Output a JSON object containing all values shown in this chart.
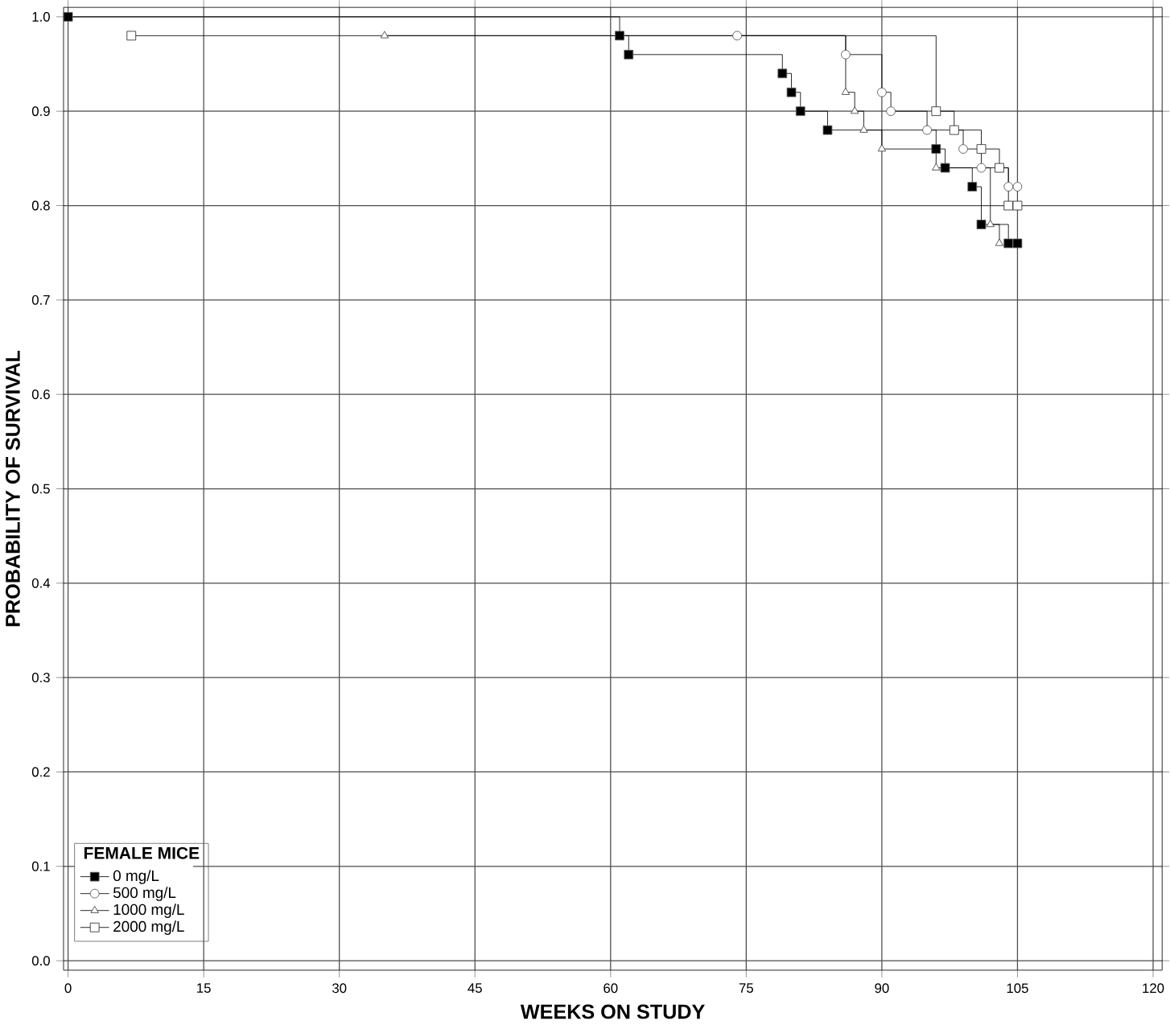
{
  "chart_data": {
    "type": "step",
    "xlabel": "WEEKS ON STUDY",
    "ylabel": "PROBABILITY OF SURVIVAL",
    "legend_title": "FEMALE MICE",
    "legend": "bottom left",
    "grid": true,
    "xlim": [
      -0.5,
      121
    ],
    "ylim": [
      -0.01,
      1.01
    ],
    "xticks": [
      0,
      15,
      30,
      45,
      60,
      75,
      90,
      105,
      120
    ],
    "yticks": [
      {
        "value": 0,
        "label": "0.0"
      },
      {
        "value": 0.1,
        "label": "0.1"
      },
      {
        "value": 0.2,
        "label": "0.2"
      },
      {
        "value": 0.3,
        "label": "0.3"
      },
      {
        "value": 0.4,
        "label": "0.4"
      },
      {
        "value": 0.5,
        "label": "0.5"
      },
      {
        "value": 0.6,
        "label": "0.6"
      },
      {
        "value": 0.7,
        "label": "0.7"
      },
      {
        "value": 0.8,
        "label": "0.8"
      },
      {
        "value": 0.9,
        "label": "0.9"
      },
      {
        "value": 1.0,
        "label": "1.0"
      }
    ],
    "series": [
      {
        "name": "0 mg/L",
        "color": "#000000",
        "marker": "square",
        "x": [
          0,
          61,
          62,
          79,
          80,
          81,
          84,
          96,
          97,
          100,
          101,
          104,
          105
        ],
        "values": [
          1.0,
          0.98,
          0.96,
          0.94,
          0.92,
          0.9,
          0.88,
          0.86,
          0.84,
          0.82,
          0.78,
          0.76,
          0.76
        ]
      },
      {
        "name": "500 mg/L",
        "color": "#ffffff",
        "marker": "circle",
        "x": [
          74,
          86,
          90,
          91,
          95,
          99,
          101,
          104,
          105
        ],
        "values": [
          0.98,
          0.96,
          0.92,
          0.9,
          0.88,
          0.86,
          0.84,
          0.82,
          0.82
        ]
      },
      {
        "name": "1000 mg/L",
        "color": "#ffffff",
        "marker": "triangle",
        "x": [
          35,
          86,
          87,
          88,
          90,
          96,
          102,
          103
        ],
        "values": [
          0.98,
          0.92,
          0.9,
          0.88,
          0.86,
          0.84,
          0.78,
          0.76
        ]
      },
      {
        "name": "2000 mg/L",
        "color": "#ffffff",
        "marker": "square",
        "x": [
          7,
          96,
          98,
          101,
          103,
          104,
          105
        ],
        "values": [
          0.98,
          0.9,
          0.88,
          0.86,
          0.84,
          0.8,
          0.8
        ]
      }
    ]
  }
}
